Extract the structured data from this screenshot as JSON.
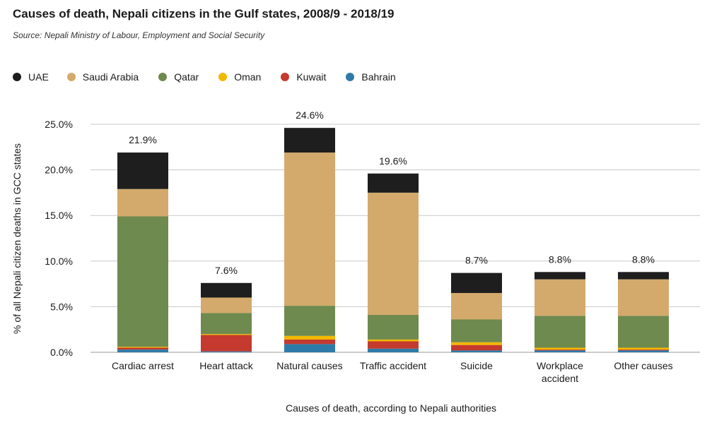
{
  "title": "Causes of death, Nepali citizens in the Gulf states, 2008/9 - 2018/19",
  "subtitle": "Source: Nepali Ministry of Labour, Employment and Social Security",
  "chart_data": {
    "type": "bar",
    "stacked": true,
    "categories": [
      "Cardiac arrest",
      "Heart attack",
      "Natural causes",
      "Traffic accident",
      "Suicide",
      "Workplace accident",
      "Other causes"
    ],
    "category_lines": [
      [
        "Cardiac arrest"
      ],
      [
        "Heart attack"
      ],
      [
        "Natural causes"
      ],
      [
        "Traffic accident"
      ],
      [
        "Suicide"
      ],
      [
        "Workplace",
        "accident"
      ],
      [
        "Other causes"
      ]
    ],
    "series": [
      {
        "name": "Bahrain",
        "color": "#2e7aa8",
        "values": [
          0.3,
          0.1,
          0.9,
          0.4,
          0.2,
          0.2,
          0.2
        ]
      },
      {
        "name": "Kuwait",
        "color": "#c43a2f",
        "values": [
          0.2,
          1.8,
          0.5,
          0.8,
          0.6,
          0.1,
          0.1
        ]
      },
      {
        "name": "Oman",
        "color": "#f2b800",
        "values": [
          0.1,
          0.1,
          0.4,
          0.2,
          0.3,
          0.2,
          0.2
        ]
      },
      {
        "name": "Qatar",
        "color": "#6e8a4e",
        "values": [
          14.3,
          2.3,
          3.3,
          2.7,
          2.5,
          3.5,
          3.5
        ]
      },
      {
        "name": "Saudi Arabia",
        "color": "#d3aa6c",
        "values": [
          3.0,
          1.7,
          16.8,
          13.4,
          2.9,
          4.0,
          4.0
        ]
      },
      {
        "name": "UAE",
        "color": "#1e1e1e",
        "values": [
          4.0,
          1.6,
          2.7,
          2.1,
          2.2,
          0.8,
          0.8
        ]
      }
    ],
    "totals": [
      "21.9%",
      "7.6%",
      "24.6%",
      "19.6%",
      "8.7%",
      "8.8%",
      "8.8%"
    ],
    "legend_order": [
      "UAE",
      "Saudi Arabia",
      "Qatar",
      "Oman",
      "Kuwait",
      "Bahrain"
    ],
    "legend_position": "top-left",
    "ylim": [
      0,
      25
    ],
    "yticks": [
      0,
      5,
      10,
      15,
      20,
      25
    ],
    "ytick_labels": [
      "0.0%",
      "5.0%",
      "10.0%",
      "15.0%",
      "20.0%",
      "25.0%"
    ],
    "grid": true,
    "xlabel": "Causes of death, according to Nepali authorities",
    "ylabel": "% of all Nepali citizen deaths in GCC states"
  }
}
